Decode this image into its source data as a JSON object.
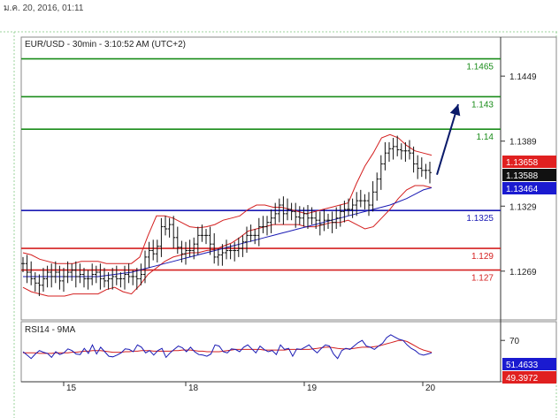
{
  "header": {
    "date_text": "ม.ค. 20, 2016, 01:11"
  },
  "chart_data": {
    "type": "line",
    "title": "EUR/USD - 30min - 3:10:52 AM (UTC+2)",
    "price_axis": {
      "ticks": [
        1.1449,
        1.1389,
        1.1329,
        1.1269
      ],
      "ylim": [
        1.1224,
        1.1485
      ]
    },
    "x_ticks": [
      "15",
      "18",
      "19",
      "20"
    ],
    "level_lines": [
      {
        "value": 1.1465,
        "label": "1.1465",
        "color": "#1a8c1a"
      },
      {
        "value": 1.143,
        "label": "1.143",
        "color": "#1a8c1a"
      },
      {
        "value": 1.14,
        "label": "1.14",
        "color": "#1a8c1a"
      },
      {
        "value": 1.1325,
        "label": "1.1325",
        "color": "#1a1ab4"
      },
      {
        "value": 1.129,
        "label": "1.129",
        "color": "#d42020"
      },
      {
        "value": 1.127,
        "label": "1.127",
        "color": "#d42020"
      }
    ],
    "price_badges": [
      {
        "value": 1.13658,
        "label": "1.13658",
        "bg": "#e02020",
        "fg": "#ffffff"
      },
      {
        "value": 1.13588,
        "label": "1.13588",
        "bg": "#111111",
        "fg": "#ffffff"
      },
      {
        "value": 1.13464,
        "label": "1.13464",
        "bg": "#1a1ad0",
        "fg": "#ffffff"
      }
    ],
    "forecast_arrow": {
      "from": 1.1358,
      "to": 1.1423,
      "color": "#0a1a6a"
    },
    "price_close": [
      1.1276,
      1.1268,
      1.1262,
      1.1258,
      1.1256,
      1.1262,
      1.1268,
      1.1264,
      1.1268,
      1.126,
      1.1264,
      1.1268,
      1.127,
      1.1264,
      1.1266,
      1.1262,
      1.1262,
      1.1266,
      1.1268,
      1.1262,
      1.126,
      1.1262,
      1.1264,
      1.1262,
      1.1262,
      1.1266,
      1.1264,
      1.1264,
      1.1262,
      1.1266,
      1.1282,
      1.1288,
      1.1285,
      1.1292,
      1.131,
      1.1308,
      1.1312,
      1.13,
      1.1291,
      1.1285,
      1.1288,
      1.1288,
      1.1294,
      1.1302,
      1.1302,
      1.1302,
      1.1294,
      1.1282,
      1.1284,
      1.1286,
      1.1288,
      1.1288,
      1.1288,
      1.129,
      1.1296,
      1.1302,
      1.1302,
      1.1302,
      1.131,
      1.131,
      1.1314,
      1.1318,
      1.1322,
      1.133,
      1.1322,
      1.1326,
      1.1324,
      1.1319,
      1.1318,
      1.1322,
      1.1318,
      1.1318,
      1.1316,
      1.1312,
      1.1316,
      1.1316,
      1.1314,
      1.1318,
      1.1324,
      1.1326,
      1.1326,
      1.133,
      1.1334,
      1.1334,
      1.1334,
      1.133,
      1.1342,
      1.1354,
      1.1368,
      1.1378,
      1.1382,
      1.1384,
      1.1381,
      1.138,
      1.138,
      1.1378,
      1.1368,
      1.1364,
      1.1362,
      1.1362,
      1.136
    ],
    "ma": [
      1.1264,
      1.1264,
      1.1264,
      1.1264,
      1.1264,
      1.1264,
      1.1264,
      1.1264,
      1.1264,
      1.1264,
      1.1265,
      1.1266,
      1.1267,
      1.1268,
      1.127,
      1.1272,
      1.1274,
      1.1276,
      1.1278,
      1.128,
      1.1282,
      1.1284,
      1.1286,
      1.1288,
      1.129,
      1.1292,
      1.1294,
      1.1296,
      1.1298,
      1.13,
      1.1302,
      1.1304,
      1.1306,
      1.1308,
      1.131,
      1.1312,
      1.1314,
      1.1316,
      1.1318,
      1.132,
      1.1322,
      1.1324,
      1.1326,
      1.1328,
      1.133,
      1.1333,
      1.1336,
      1.134,
      1.1344,
      1.1346
    ],
    "bb_upper": [
      1.1286,
      1.1284,
      1.128,
      1.1278,
      1.1276,
      1.1276,
      1.1276,
      1.1278,
      1.1278,
      1.1278,
      1.1276,
      1.1276,
      1.1276,
      1.1276,
      1.1282,
      1.1302,
      1.132,
      1.132,
      1.1318,
      1.1314,
      1.131,
      1.1309,
      1.131,
      1.1312,
      1.1316,
      1.1318,
      1.132,
      1.1326,
      1.133,
      1.133,
      1.1328,
      1.1328,
      1.1326,
      1.1324,
      1.1322,
      1.1324,
      1.1326,
      1.1328,
      1.133,
      1.1332,
      1.135,
      1.1366,
      1.1378,
      1.1392,
      1.1395,
      1.1392,
      1.1385,
      1.138,
      1.1378,
      1.1376
    ],
    "bb_lower": [
      1.1254,
      1.125,
      1.1248,
      1.1246,
      1.1246,
      1.1246,
      1.1248,
      1.1248,
      1.1248,
      1.1248,
      1.1252,
      1.1254,
      1.125,
      1.1248,
      1.1256,
      1.1266,
      1.1272,
      1.1278,
      1.1282,
      1.1284,
      1.1286,
      1.1286,
      1.1288,
      1.1289,
      1.1292,
      1.1295,
      1.13,
      1.1306,
      1.1308,
      1.131,
      1.1312,
      1.1312,
      1.1312,
      1.1312,
      1.131,
      1.131,
      1.1312,
      1.1314,
      1.1314,
      1.1316,
      1.1312,
      1.1308,
      1.131,
      1.1318,
      1.1326,
      1.1336,
      1.1344,
      1.1348,
      1.1348,
      1.1346
    ],
    "rsi_panel": {
      "title": "RSI14 - 9MA",
      "ylim": [
        0,
        100
      ],
      "ticks": [
        70
      ],
      "badges": [
        {
          "value": 51.4633,
          "label": "51.4633",
          "bg": "#1a1ad0",
          "fg": "#ffffff"
        },
        {
          "value": 49.3972,
          "label": "49.3972",
          "bg": "#e02020",
          "fg": "#ffffff"
        }
      ],
      "rsi": [
        50,
        44,
        38,
        46,
        52,
        49,
        47,
        40,
        50,
        45,
        48,
        55,
        52,
        46,
        45,
        56,
        47,
        62,
        46,
        58,
        50,
        42,
        41,
        44,
        48,
        55,
        54,
        50,
        62,
        58,
        48,
        52,
        44,
        52,
        56,
        40,
        48,
        54,
        60,
        57,
        50,
        58,
        50,
        45,
        44,
        42,
        46,
        62,
        60,
        50,
        48,
        55,
        54,
        50,
        58,
        62,
        55,
        48,
        60,
        54,
        50,
        52,
        45,
        62,
        54,
        56,
        42,
        55,
        54,
        58,
        62,
        54,
        48,
        56,
        62,
        60,
        46,
        38,
        52,
        56,
        54,
        60,
        66,
        70,
        60,
        58,
        54,
        60,
        65,
        75,
        80,
        76,
        72,
        70,
        62,
        56,
        52,
        46,
        44,
        46,
        48
      ],
      "ma": [
        48,
        48,
        48,
        48,
        47,
        47,
        47,
        47,
        48,
        48,
        48,
        48,
        49,
        49,
        50,
        51,
        51,
        52,
        52,
        52,
        51,
        50,
        49,
        49,
        49,
        50,
        50,
        51,
        51,
        52,
        52,
        52,
        51,
        51,
        51,
        51,
        51,
        52,
        52,
        53,
        53,
        53,
        52,
        51,
        51,
        50,
        50,
        50,
        50,
        51,
        52,
        53,
        54,
        54,
        54,
        54,
        54,
        54,
        54,
        53,
        53,
        53,
        53,
        53,
        53,
        54,
        54,
        54,
        54,
        54,
        54,
        55,
        56,
        57,
        58,
        58,
        57,
        56,
        55,
        55,
        55,
        56,
        57,
        58,
        58,
        58,
        59,
        60,
        62,
        64,
        66,
        68,
        70,
        70,
        68,
        64,
        60,
        56,
        53,
        51,
        49
      ]
    }
  }
}
